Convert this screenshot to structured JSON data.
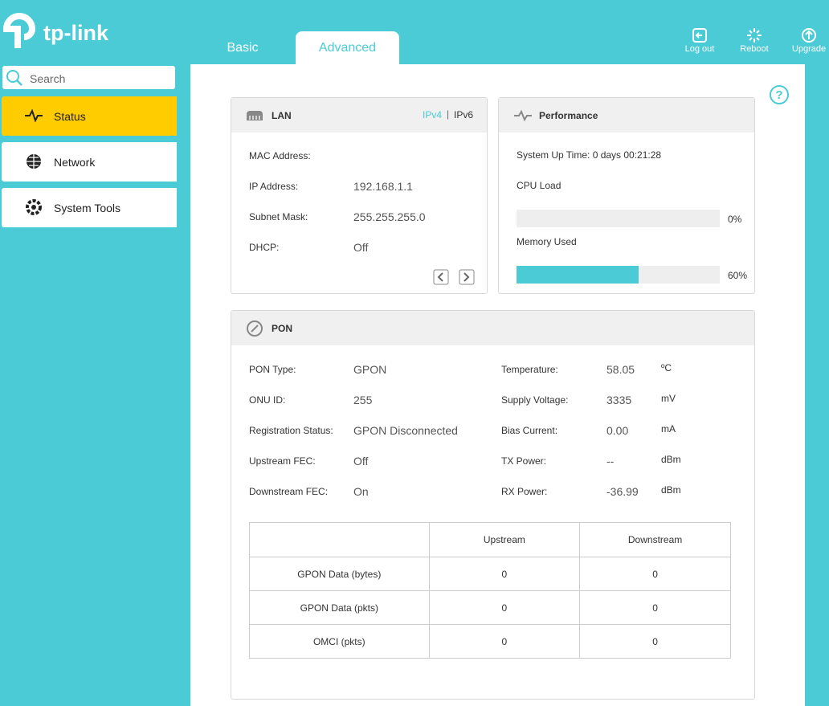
{
  "header": {
    "logo": "tp-link",
    "tabs": [
      "Basic",
      "Advanced"
    ],
    "actions": [
      "Log out",
      "Reboot",
      "Upgrade"
    ]
  },
  "sidebar": {
    "search_placeholder": "Search",
    "menu": [
      "Status",
      "Network",
      "System Tools"
    ]
  },
  "lan": {
    "title": "LAN",
    "ip_versions": [
      "IPv4",
      "IPv6"
    ],
    "rows": [
      {
        "label": "MAC Address:"
      },
      {
        "label": "IP Address:",
        "value": "192.168.1.1"
      },
      {
        "label": "Subnet Mask:",
        "value": "255.255.255.0"
      },
      {
        "label": "DHCP:",
        "value": "Off"
      }
    ]
  },
  "performance": {
    "title": "Performance",
    "uptime": "System Up Time: 0 days 00:21:28",
    "cpu": {
      "label": "CPU Load",
      "value": 0,
      "value_label": "0%"
    },
    "memory": {
      "label": "Memory Used",
      "value": 60,
      "value_label": "60%"
    }
  },
  "pon": {
    "title": "PON",
    "left_rows": [
      {
        "label": "PON Type:",
        "value": "GPON"
      },
      {
        "label": "ONU ID:",
        "value": "255"
      },
      {
        "label": "Registration Status:",
        "value": "GPON Disconnected"
      },
      {
        "label": "Upstream FEC:",
        "value": "Off"
      },
      {
        "label": "Downstream FEC:",
        "value": "On"
      }
    ],
    "right_rows": [
      {
        "label": "Temperature:",
        "value": "58.05",
        "unit": "ºC"
      },
      {
        "label": "Supply Voltage:",
        "value": "3335",
        "unit": "mV"
      },
      {
        "label": "Bias Current:",
        "value": "0.00",
        "unit": "mA"
      },
      {
        "label": "TX Power:",
        "value": "--",
        "unit": "dBm"
      },
      {
        "label": "RX Power:",
        "value": "-36.99",
        "unit": "dBm"
      }
    ],
    "table": {
      "header": [
        "Upstream",
        "Downstream"
      ],
      "rows": [
        [
          "GPON Data (bytes)",
          "0",
          "0"
        ],
        [
          "GPON Data (pkts)",
          "0",
          "0"
        ],
        [
          "OMCI (pkts)",
          "0",
          "0"
        ]
      ]
    }
  }
}
